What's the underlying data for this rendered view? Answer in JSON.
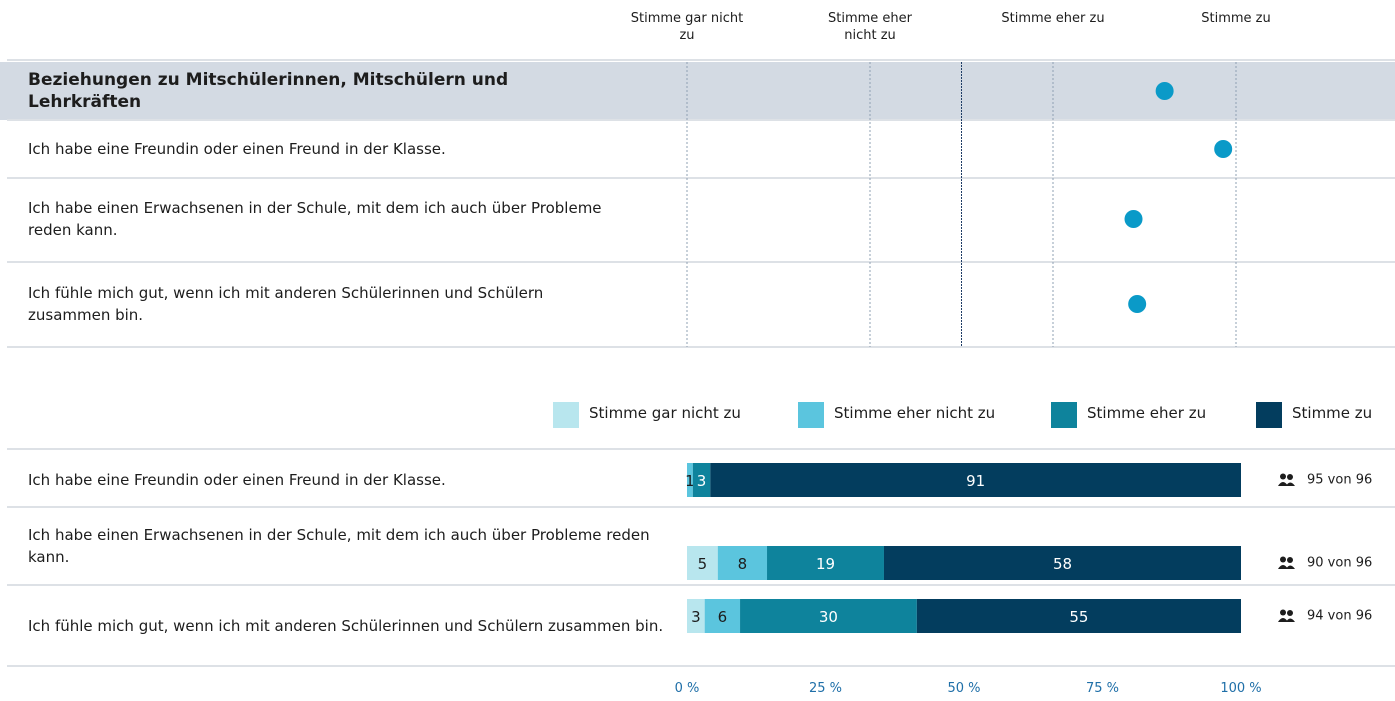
{
  "chart_data": [
    {
      "type": "dot",
      "categories": [
        "Beziehungen zu Mitschülerinnen, Mitschülern und Lehrkräften",
        "Ich habe eine Freundin oder einen Freund in der Klasse.",
        "Ich habe einen Erwachsenen in der Schule, mit dem ich auch über Probleme reden kann.",
        "Ich fühle mich gut, wenn ich mit anderen Schülerinnen und Schülern zusammen bin."
      ],
      "values": [
        3.61,
        3.93,
        3.44,
        3.46
      ],
      "color": "#0a9ac8",
      "xlim": [
        1,
        4
      ],
      "xticks": [
        {
          "value": 1,
          "label": "Stimme gar nicht zu"
        },
        {
          "value": 2,
          "label": "Stimme eher nicht zu"
        },
        {
          "value": 3,
          "label": "Stimme eher zu"
        },
        {
          "value": 4,
          "label": "Stimme zu"
        }
      ]
    },
    {
      "type": "stacked_bar",
      "categories": [
        "Ich habe eine Freundin oder einen Freund in der Klasse.",
        "Ich habe einen Erwachsenen in der Schule, mit dem ich auch über Probleme reden kann.",
        "Ich fühle mich gut, wenn ich mit anderen Schülerinnen und Schülern zusammen bin."
      ],
      "series": [
        {
          "name": "Stimme gar nicht zu",
          "color": "#b8e6ee",
          "values": [
            0,
            5,
            3
          ]
        },
        {
          "name": "Stimme eher nicht zu",
          "color": "#5bc5de",
          "values": [
            1,
            8,
            6
          ]
        },
        {
          "name": "Stimme eher zu",
          "color": "#0e839c",
          "values": [
            3,
            19,
            30
          ]
        },
        {
          "name": "Stimme zu",
          "color": "#033d5e",
          "values": [
            91,
            58,
            55
          ]
        }
      ],
      "respondents": [
        "95 von 96",
        "90 von 96",
        "94 von 96"
      ],
      "xlim": [
        0,
        100
      ],
      "xticks": [
        {
          "value": 0,
          "label": "0 %"
        },
        {
          "value": 25,
          "label": "25 %"
        },
        {
          "value": 50,
          "label": "50 %"
        },
        {
          "value": 75,
          "label": "75 %"
        },
        {
          "value": 100,
          "label": "100 %"
        }
      ]
    }
  ]
}
